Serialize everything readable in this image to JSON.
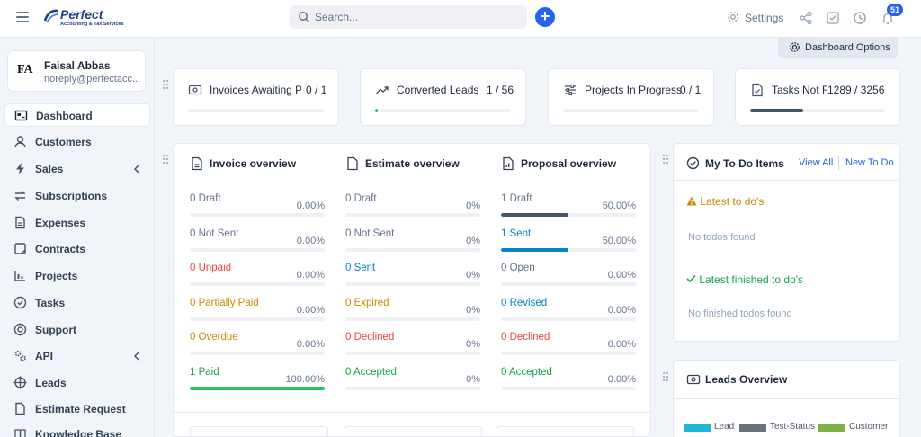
{
  "brand": {
    "name": "Perfect",
    "tagline": "Accounting & Tax Services"
  },
  "search": {
    "placeholder": "Search..."
  },
  "topbar": {
    "settings_label": "Settings",
    "notifications_count": "51",
    "add_label": "+"
  },
  "user": {
    "initials": "FA",
    "name": "Faisal Abbas",
    "email": "noreply@perfectacc..."
  },
  "sidebar": {
    "items": [
      {
        "label": "Dashboard",
        "icon": "dashboard-icon",
        "active": true
      },
      {
        "label": "Customers",
        "icon": "user-icon"
      },
      {
        "label": "Sales",
        "icon": "bolt-icon",
        "has_children": true
      },
      {
        "label": "Subscriptions",
        "icon": "refresh-icon"
      },
      {
        "label": "Expenses",
        "icon": "file-icon"
      },
      {
        "label": "Contracts",
        "icon": "contract-icon"
      },
      {
        "label": "Projects",
        "icon": "chart-icon"
      },
      {
        "label": "Tasks",
        "icon": "check-circle-icon"
      },
      {
        "label": "Support",
        "icon": "lifebuoy-icon"
      },
      {
        "label": "API",
        "icon": "cogs-icon",
        "has_children": true
      },
      {
        "label": "Leads",
        "icon": "crosshair-icon"
      },
      {
        "label": "Estimate Request",
        "icon": "document-icon"
      },
      {
        "label": "Knowledge Base",
        "icon": "book-icon"
      }
    ]
  },
  "dashboard_options": {
    "label": "Dashboard Options"
  },
  "stats": [
    {
      "label": "Invoices Awaiting P...",
      "value": "0 / 1",
      "progress": 0,
      "color": "#16a34a",
      "icon": "invoice-icon"
    },
    {
      "label": "Converted Leads",
      "value": "1 / 56",
      "progress": 0.018,
      "color": "#22c55e",
      "icon": "trend-up-icon"
    },
    {
      "label": "Projects In Progress",
      "value": "0 / 1",
      "progress": 0,
      "color": "#3b82f6",
      "icon": "sliders-icon"
    },
    {
      "label": "Tasks Not Fi...",
      "value": "1289 / 3256",
      "progress": 0.396,
      "color": "#475569",
      "icon": "task-file-icon"
    }
  ],
  "invoice_overview": {
    "title": "Invoice overview",
    "rows": [
      {
        "label": "0 Draft",
        "percent": "0.00%",
        "value": 0,
        "color": "#64748b",
        "bar": "#64748b"
      },
      {
        "label": "0 Not Sent",
        "percent": "0.00%",
        "value": 0,
        "color": "#64748b",
        "bar": "#64748b"
      },
      {
        "label": "0 Unpaid",
        "percent": "0.00%",
        "value": 0,
        "color": "#ef4444",
        "bar": "#ef4444"
      },
      {
        "label": "0 Partially Paid",
        "percent": "0.00%",
        "value": 0,
        "color": "#ca8a04",
        "bar": "#ca8a04"
      },
      {
        "label": "0 Overdue",
        "percent": "0.00%",
        "value": 0,
        "color": "#ca8a04",
        "bar": "#ca8a04"
      },
      {
        "label": "1 Paid",
        "percent": "100.00%",
        "value": 1,
        "color": "#16a34a",
        "bar": "#22c55e"
      }
    ]
  },
  "estimate_overview": {
    "title": "Estimate overview",
    "rows": [
      {
        "label": "0 Draft",
        "percent": "0%",
        "value": 0,
        "color": "#64748b",
        "bar": "#64748b"
      },
      {
        "label": "0 Not Sent",
        "percent": "0%",
        "value": 0,
        "color": "#64748b",
        "bar": "#64748b"
      },
      {
        "label": "0 Sent",
        "percent": "0%",
        "value": 0,
        "color": "#0284c7",
        "bar": "#0284c7"
      },
      {
        "label": "0 Expired",
        "percent": "0%",
        "value": 0,
        "color": "#ca8a04",
        "bar": "#ca8a04"
      },
      {
        "label": "0 Declined",
        "percent": "0%",
        "value": 0,
        "color": "#ef4444",
        "bar": "#ef4444"
      },
      {
        "label": "0 Accepted",
        "percent": "0%",
        "value": 0,
        "color": "#16a34a",
        "bar": "#16a34a"
      }
    ]
  },
  "proposal_overview": {
    "title": "Proposal overview",
    "rows": [
      {
        "label": "1 Draft",
        "percent": "50.00%",
        "value": 0.5,
        "color": "#64748b",
        "bar": "#475569"
      },
      {
        "label": "1 Sent",
        "percent": "50.00%",
        "value": 0.5,
        "color": "#0284c7",
        "bar": "#0284c7"
      },
      {
        "label": "0 Open",
        "percent": "0.00%",
        "value": 0,
        "color": "#64748b",
        "bar": "#64748b"
      },
      {
        "label": "0 Revised",
        "percent": "0.00%",
        "value": 0,
        "color": "#0284c7",
        "bar": "#0284c7"
      },
      {
        "label": "0 Declined",
        "percent": "0.00%",
        "value": 0,
        "color": "#ef4444",
        "bar": "#ef4444"
      },
      {
        "label": "0 Accepted",
        "percent": "0.00%",
        "value": 0,
        "color": "#16a34a",
        "bar": "#16a34a"
      }
    ]
  },
  "todo": {
    "title": "My To Do Items",
    "view_all": "View All",
    "new_todo": "New To Do",
    "latest_label": "Latest to do's",
    "latest_empty": "No todos found",
    "finished_label": "Latest finished to do's",
    "finished_empty": "No finished todos found"
  },
  "leads_overview": {
    "title": "Leads Overview",
    "legend": [
      {
        "label": "Lead",
        "color": "#22b5d6"
      },
      {
        "label": "Test-Status",
        "color": "#6b7280"
      },
      {
        "label": "Customer",
        "color": "#7cb342"
      }
    ]
  }
}
